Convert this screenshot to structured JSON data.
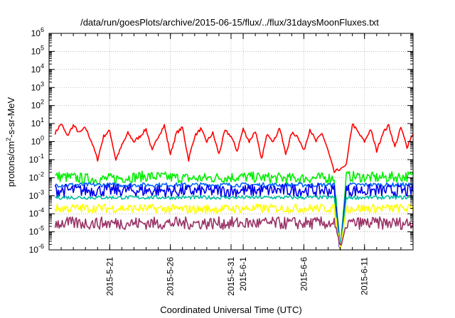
{
  "chart_data": {
    "type": "line",
    "title": "/data/run/goesPlots/archive/2015-06-15/flux/../flux/31daysMoonFluxes.txt",
    "xlabel": "Coordinated Universal Time (UTC)",
    "ylabel": {
      "pre": "protons/cm",
      "sup": "2",
      "post": "-s-sr-MeV"
    },
    "x_range": [
      "2015-05-16",
      "2015-06-15"
    ],
    "x_ticks": [
      "2015-5-21",
      "2015-5-26",
      "2015-5-31",
      "2015-6-1",
      "2015-6-6",
      "2015-6-11"
    ],
    "y_scale": "log",
    "ylim": [
      1e-06,
      1000000.0
    ],
    "y_ticks": [
      {
        "value": 1e-06,
        "base": "10",
        "exp": "-6"
      },
      {
        "value": 1e-05,
        "base": "10",
        "exp": "-5"
      },
      {
        "value": 0.0001,
        "base": "10",
        "exp": "-4"
      },
      {
        "value": 0.001,
        "base": "10",
        "exp": "-3"
      },
      {
        "value": 0.01,
        "base": "10",
        "exp": "-2"
      },
      {
        "value": 0.1,
        "base": "10",
        "exp": "-1"
      },
      {
        "value": 1,
        "base": "10",
        "exp": "0"
      },
      {
        "value": 10,
        "base": "10",
        "exp": "1"
      },
      {
        "value": 100,
        "base": "10",
        "exp": "2"
      },
      {
        "value": 1000.0,
        "base": "10",
        "exp": "3"
      },
      {
        "value": 10000.0,
        "base": "10",
        "exp": "4"
      },
      {
        "value": 100000.0,
        "base": "10",
        "exp": "5"
      },
      {
        "value": 1000000.0,
        "base": "10",
        "exp": "6"
      }
    ],
    "grid": true,
    "data_gap": [
      "2015-06-09T00:00",
      "2015-06-09T12:00"
    ],
    "series": [
      {
        "color": "#ff0000",
        "jitter": 0.09,
        "points": [
          [
            "2015-05-16T12:00",
            3
          ],
          [
            "2015-05-17",
            10
          ],
          [
            "2015-05-17T12:00",
            2
          ],
          [
            "2015-05-18",
            8
          ],
          [
            "2015-05-18T12:00",
            3
          ],
          [
            "2015-05-19",
            6
          ],
          [
            "2015-05-19T12:00",
            1
          ],
          [
            "2015-05-20",
            0.1
          ],
          [
            "2015-05-20T12:00",
            2
          ],
          [
            "2015-05-21",
            4
          ],
          [
            "2015-05-21T12:00",
            0.1
          ],
          [
            "2015-05-22",
            0.6
          ],
          [
            "2015-05-22T12:00",
            3
          ],
          [
            "2015-05-23",
            1
          ],
          [
            "2015-05-23T12:00",
            2
          ],
          [
            "2015-05-24",
            5
          ],
          [
            "2015-05-24T12:00",
            0.3
          ],
          [
            "2015-05-25",
            2
          ],
          [
            "2015-05-25T12:00",
            8
          ],
          [
            "2015-05-26",
            0.2
          ],
          [
            "2015-05-26T12:00",
            3
          ],
          [
            "2015-05-27",
            6
          ],
          [
            "2015-05-27T12:00",
            0.1
          ],
          [
            "2015-05-28",
            2
          ],
          [
            "2015-05-28T12:00",
            5
          ],
          [
            "2015-05-29",
            1
          ],
          [
            "2015-05-29T12:00",
            3
          ],
          [
            "2015-05-30",
            0.2
          ],
          [
            "2015-05-30T12:00",
            4
          ],
          [
            "2015-05-31",
            2
          ],
          [
            "2015-05-31T12:00",
            0.3
          ],
          [
            "2015-06-01",
            5
          ],
          [
            "2015-06-01T12:00",
            1
          ],
          [
            "2015-06-02",
            4
          ],
          [
            "2015-06-02T12:00",
            0.1
          ],
          [
            "2015-06-03",
            3
          ],
          [
            "2015-06-03T12:00",
            1
          ],
          [
            "2015-06-04",
            6
          ],
          [
            "2015-06-04T12:00",
            0.2
          ],
          [
            "2015-06-05",
            3
          ],
          [
            "2015-06-05T12:00",
            2
          ],
          [
            "2015-06-06",
            0.3
          ],
          [
            "2015-06-06T12:00",
            5
          ],
          [
            "2015-06-07",
            1
          ],
          [
            "2015-06-07T12:00",
            3
          ],
          [
            "2015-06-08",
            0.3
          ],
          [
            "2015-06-08T12:00",
            0.02
          ],
          [
            "2015-06-09T12:00",
            0.05
          ],
          [
            "2015-06-10",
            10
          ],
          [
            "2015-06-10T12:00",
            3
          ],
          [
            "2015-06-11",
            1
          ],
          [
            "2015-06-11T12:00",
            5
          ],
          [
            "2015-06-12",
            0.3
          ],
          [
            "2015-06-12T12:00",
            3
          ],
          [
            "2015-06-13",
            8
          ],
          [
            "2015-06-13T12:00",
            0.5
          ],
          [
            "2015-06-14",
            6
          ],
          [
            "2015-06-14T12:00",
            0.5
          ],
          [
            "2015-06-15",
            3
          ]
        ]
      },
      {
        "color": "#00ee00",
        "jitter": 0.3,
        "points": [
          [
            "2015-05-16T12:00",
            0.012
          ],
          [
            "2015-05-20",
            0.008
          ],
          [
            "2015-05-24",
            0.012
          ],
          [
            "2015-05-28",
            0.009
          ],
          [
            "2015-06-01",
            0.011
          ],
          [
            "2015-06-05",
            0.009
          ],
          [
            "2015-06-08T12:00",
            0.01
          ],
          [
            "2015-06-09",
            1e-06
          ],
          [
            "2015-06-09T12:00",
            0.012
          ],
          [
            "2015-06-12",
            0.01
          ],
          [
            "2015-06-15",
            0.012
          ]
        ]
      },
      {
        "color": "#0064ff",
        "jitter": 0.12,
        "points": [
          [
            "2015-05-16T12:00",
            0.004
          ],
          [
            "2015-05-22",
            0.004
          ],
          [
            "2015-05-28",
            0.004
          ],
          [
            "2015-06-03",
            0.004
          ],
          [
            "2015-06-08T12:00",
            0.004
          ],
          [
            "2015-06-09",
            1e-06
          ],
          [
            "2015-06-09T12:00",
            0.004
          ],
          [
            "2015-06-15",
            0.004
          ]
        ]
      },
      {
        "color": "#0000ee",
        "jitter": 0.35,
        "points": [
          [
            "2015-05-16T12:00",
            0.002
          ],
          [
            "2015-05-22",
            0.002
          ],
          [
            "2015-05-28",
            0.0018
          ],
          [
            "2015-06-03",
            0.002
          ],
          [
            "2015-06-08T12:00",
            0.002
          ],
          [
            "2015-06-09",
            1e-06
          ],
          [
            "2015-06-09T12:00",
            0.002
          ],
          [
            "2015-06-15",
            0.0018
          ]
        ]
      },
      {
        "color": "#00bfa0",
        "jitter": 0.1,
        "points": [
          [
            "2015-05-16T12:00",
            0.0008
          ],
          [
            "2015-05-22",
            0.0008
          ],
          [
            "2015-05-28",
            0.0008
          ],
          [
            "2015-06-03",
            0.0008
          ],
          [
            "2015-06-08T12:00",
            0.0008
          ],
          [
            "2015-06-09",
            1e-06
          ],
          [
            "2015-06-09T12:00",
            0.0008
          ],
          [
            "2015-06-15",
            0.0008
          ]
        ]
      },
      {
        "color": "#ffff00",
        "jitter": 0.25,
        "points": [
          [
            "2015-05-16T12:00",
            0.0002
          ],
          [
            "2015-05-22",
            0.0002
          ],
          [
            "2015-05-28",
            0.00018
          ],
          [
            "2015-06-03",
            0.0002
          ],
          [
            "2015-06-08T12:00",
            0.0002
          ],
          [
            "2015-06-09",
            1e-06
          ],
          [
            "2015-06-09T12:00",
            0.0002
          ],
          [
            "2015-06-15",
            0.0002
          ]
        ]
      },
      {
        "color": "#993366",
        "jitter": 0.35,
        "points": [
          [
            "2015-05-16T12:00",
            3e-05
          ],
          [
            "2015-05-22",
            3e-05
          ],
          [
            "2015-05-28",
            3e-05
          ],
          [
            "2015-06-03",
            3e-05
          ],
          [
            "2015-06-08T12:00",
            3e-05
          ],
          [
            "2015-06-09",
            1e-06
          ],
          [
            "2015-06-09T12:00",
            3e-05
          ],
          [
            "2015-06-15",
            3e-05
          ]
        ]
      }
    ]
  }
}
